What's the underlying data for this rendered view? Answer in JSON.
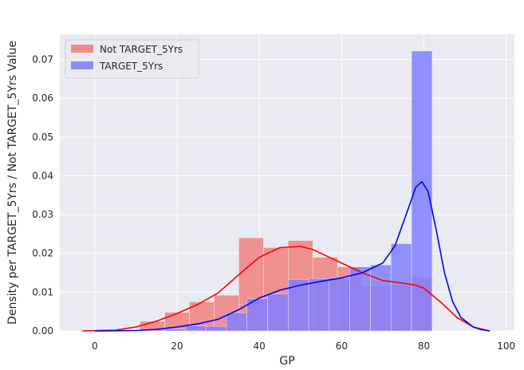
{
  "chart_data": {
    "type": "bar",
    "xlabel": "GP",
    "ylabel": "Density per TARGET_5Yrs / Not TARGET_5Yrs Value",
    "xlim": [
      -8.5,
      102
    ],
    "ylim": [
      0,
      0.0765
    ],
    "xticks": [
      0,
      20,
      40,
      60,
      80,
      100
    ],
    "yticks": [
      0.0,
      0.01,
      0.02,
      0.03,
      0.04,
      0.05,
      0.06,
      0.07
    ],
    "ytick_labels": [
      "0.00",
      "0.01",
      "0.02",
      "0.03",
      "0.04",
      "0.05",
      "0.06",
      "0.07"
    ],
    "grid": true,
    "legend_position": "top-left",
    "series": [
      {
        "name": "Not TARGET_5Yrs",
        "color": "#ff0000",
        "bar_color": "#f08080",
        "bins": [
          {
            "x0": 11,
            "x1": 17,
            "density": 0.0025
          },
          {
            "x0": 17,
            "x1": 23,
            "density": 0.0048
          },
          {
            "x0": 23,
            "x1": 29,
            "density": 0.0075
          },
          {
            "x0": 29,
            "x1": 35,
            "density": 0.0092
          },
          {
            "x0": 35,
            "x1": 41,
            "density": 0.024
          },
          {
            "x0": 41,
            "x1": 47,
            "density": 0.0215
          },
          {
            "x0": 47,
            "x1": 53,
            "density": 0.0233
          },
          {
            "x0": 53,
            "x1": 59,
            "density": 0.019
          },
          {
            "x0": 59,
            "x1": 65,
            "density": 0.0165
          },
          {
            "x0": 65,
            "x1": 71,
            "density": 0.0115
          },
          {
            "x0": 71,
            "x1": 77,
            "density": 0.0118
          },
          {
            "x0": 77,
            "x1": 82,
            "density": 0.0138
          }
        ],
        "kde": [
          [
            -3,
            0.0
          ],
          [
            5,
            0.0002
          ],
          [
            10,
            0.001
          ],
          [
            15,
            0.0025
          ],
          [
            20,
            0.0045
          ],
          [
            25,
            0.0068
          ],
          [
            30,
            0.0098
          ],
          [
            35,
            0.0145
          ],
          [
            40,
            0.019
          ],
          [
            45,
            0.0215
          ],
          [
            50,
            0.0218
          ],
          [
            53,
            0.021
          ],
          [
            56,
            0.0195
          ],
          [
            60,
            0.0175
          ],
          [
            65,
            0.015
          ],
          [
            70,
            0.013
          ],
          [
            75,
            0.0123
          ],
          [
            78,
            0.0118
          ],
          [
            80,
            0.011
          ],
          [
            84,
            0.0075
          ],
          [
            88,
            0.0035
          ],
          [
            92,
            0.001
          ],
          [
            96,
            0.0
          ]
        ]
      },
      {
        "name": "TARGET_5Yrs",
        "color": "#0000ff",
        "bar_color": "#8080ff",
        "bins": [
          {
            "x0": 17,
            "x1": 22,
            "density": 0.0005
          },
          {
            "x0": 22,
            "x1": 27,
            "density": 0.0013
          },
          {
            "x0": 27,
            "x1": 32,
            "density": 0.0012
          },
          {
            "x0": 32,
            "x1": 37,
            "density": 0.0047
          },
          {
            "x0": 37,
            "x1": 42,
            "density": 0.0083
          },
          {
            "x0": 42,
            "x1": 47,
            "density": 0.0095
          },
          {
            "x0": 47,
            "x1": 52,
            "density": 0.0133
          },
          {
            "x0": 52,
            "x1": 57,
            "density": 0.0135
          },
          {
            "x0": 57,
            "x1": 62,
            "density": 0.0137
          },
          {
            "x0": 62,
            "x1": 67,
            "density": 0.0165
          },
          {
            "x0": 67,
            "x1": 72,
            "density": 0.017
          },
          {
            "x0": 72,
            "x1": 77,
            "density": 0.0225
          },
          {
            "x0": 77,
            "x1": 82,
            "density": 0.0722
          }
        ],
        "kde": [
          [
            0,
            0.0
          ],
          [
            10,
            0.0001
          ],
          [
            15,
            0.0004
          ],
          [
            20,
            0.001
          ],
          [
            25,
            0.0018
          ],
          [
            30,
            0.003
          ],
          [
            35,
            0.0055
          ],
          [
            40,
            0.0085
          ],
          [
            45,
            0.0105
          ],
          [
            50,
            0.0118
          ],
          [
            55,
            0.0128
          ],
          [
            60,
            0.0137
          ],
          [
            65,
            0.015
          ],
          [
            70,
            0.0175
          ],
          [
            73,
            0.022
          ],
          [
            76,
            0.031
          ],
          [
            78,
            0.037
          ],
          [
            79.5,
            0.0385
          ],
          [
            81,
            0.036
          ],
          [
            83,
            0.026
          ],
          [
            85,
            0.015
          ],
          [
            87,
            0.0075
          ],
          [
            89,
            0.0035
          ],
          [
            92,
            0.001
          ],
          [
            94,
            0.0003
          ],
          [
            96,
            0.0
          ]
        ]
      }
    ]
  }
}
